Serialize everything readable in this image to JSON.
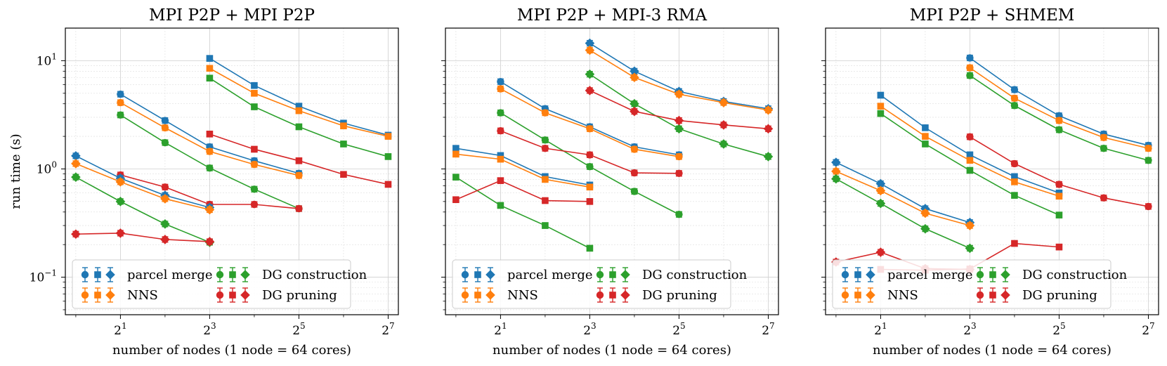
{
  "chart_data": {
    "type": "line",
    "x_scale": "log2",
    "y_scale": "log10",
    "xlim": [
      0.85,
      150
    ],
    "ylim": [
      0.045,
      20
    ],
    "x_ticks": [
      2,
      8,
      32,
      128
    ],
    "x_tick_labels": [
      {
        "base": "2",
        "exp": "1"
      },
      {
        "base": "2",
        "exp": "3"
      },
      {
        "base": "2",
        "exp": "5"
      },
      {
        "base": "2",
        "exp": "7"
      }
    ],
    "y_ticks": [
      0.1,
      1,
      10
    ],
    "y_tick_labels": [
      {
        "base": "10",
        "exp": "−1"
      },
      {
        "base": "10",
        "exp": "0"
      },
      {
        "base": "10",
        "exp": "1"
      }
    ],
    "xlabel": "number of nodes (1 node = 64 cores)",
    "ylabel": "run time (s)",
    "legend": {
      "location": "lower-left",
      "entries": [
        {
          "label": "parcel merge",
          "color": "#1f77b4"
        },
        {
          "label": "NNS",
          "color": "#ff7f0e"
        },
        {
          "label": "DG construction",
          "color": "#2ca02c"
        },
        {
          "label": "DG pruning",
          "color": "#d62728"
        }
      ]
    },
    "panels": [
      {
        "title": "MPI P2P + MPI P2P",
        "series": [
          {
            "name": "parcel merge",
            "marker": "square",
            "x": [
              8,
              16,
              32,
              64,
              128
            ],
            "y": [
              10.5,
              5.9,
              3.8,
              2.65,
              2.05
            ]
          },
          {
            "name": "NNS",
            "marker": "square",
            "x": [
              8,
              16,
              32,
              64,
              128
            ],
            "y": [
              8.5,
              5.0,
              3.45,
              2.5,
              2.0
            ]
          },
          {
            "name": "DG construction",
            "marker": "square",
            "x": [
              8,
              16,
              32,
              64,
              128
            ],
            "y": [
              6.9,
              3.75,
              2.45,
              1.7,
              1.3
            ]
          },
          {
            "name": "DG pruning",
            "marker": "square",
            "x": [
              8,
              16,
              32,
              64,
              128
            ],
            "y": [
              2.1,
              1.52,
              1.19,
              0.89,
              0.72
            ]
          },
          {
            "name": "parcel merge",
            "marker": "circle",
            "x": [
              2,
              4,
              8,
              16,
              32
            ],
            "y": [
              4.9,
              2.8,
              1.6,
              1.19,
              0.91
            ]
          },
          {
            "name": "NNS",
            "marker": "circle",
            "x": [
              2,
              4,
              8,
              16,
              32
            ],
            "y": [
              4.1,
              2.4,
              1.45,
              1.1,
              0.87
            ]
          },
          {
            "name": "DG construction",
            "marker": "circle",
            "x": [
              2,
              4,
              8,
              16,
              32
            ],
            "y": [
              3.15,
              1.75,
              1.02,
              0.65,
              0.43
            ]
          },
          {
            "name": "DG pruning",
            "marker": "circle",
            "x": [
              2,
              4,
              8,
              16,
              32
            ],
            "y": [
              0.88,
              0.68,
              0.47,
              0.47,
              0.43
            ]
          },
          {
            "name": "parcel merge",
            "marker": "diamond",
            "x": [
              1,
              2,
              4,
              8
            ],
            "y": [
              1.32,
              0.82,
              0.57,
              0.44
            ]
          },
          {
            "name": "NNS",
            "marker": "diamond",
            "x": [
              1,
              2,
              4,
              8
            ],
            "y": [
              1.12,
              0.76,
              0.53,
              0.42
            ]
          },
          {
            "name": "DG construction",
            "marker": "diamond",
            "x": [
              1,
              2,
              4,
              8
            ],
            "y": [
              0.84,
              0.5,
              0.31,
              0.21
            ]
          },
          {
            "name": "DG pruning",
            "marker": "diamond",
            "x": [
              1,
              2,
              4,
              8
            ],
            "y": [
              0.25,
              0.255,
              0.223,
              0.213
            ]
          }
        ]
      },
      {
        "title": "MPI P2P + MPI-3 RMA",
        "series": [
          {
            "name": "parcel merge",
            "marker": "diamond",
            "x": [
              8,
              16,
              32,
              64,
              128
            ],
            "y": [
              14.5,
              8.0,
              5.2,
              4.2,
              3.6
            ]
          },
          {
            "name": "NNS",
            "marker": "diamond",
            "x": [
              8,
              16,
              32,
              64,
              128
            ],
            "y": [
              12.5,
              7.0,
              4.9,
              4.1,
              3.5
            ]
          },
          {
            "name": "DG construction",
            "marker": "diamond",
            "x": [
              8,
              16,
              32,
              64,
              128
            ],
            "y": [
              7.5,
              4.0,
              2.35,
              1.7,
              1.3
            ]
          },
          {
            "name": "DG pruning",
            "marker": "diamond",
            "x": [
              8,
              16,
              32,
              64,
              128
            ],
            "y": [
              5.3,
              3.4,
              2.8,
              2.55,
              2.35
            ]
          },
          {
            "name": "parcel merge",
            "marker": "circle",
            "x": [
              2,
              4,
              8,
              16,
              32
            ],
            "y": [
              6.4,
              3.6,
              2.45,
              1.6,
              1.35
            ]
          },
          {
            "name": "NNS",
            "marker": "circle",
            "x": [
              2,
              4,
              8,
              16,
              32
            ],
            "y": [
              5.5,
              3.3,
              2.35,
              1.52,
              1.3
            ]
          },
          {
            "name": "DG construction",
            "marker": "circle",
            "x": [
              2,
              4,
              8,
              16,
              32
            ],
            "y": [
              3.3,
              1.85,
              1.05,
              0.62,
              0.38
            ]
          },
          {
            "name": "DG pruning",
            "marker": "circle",
            "x": [
              2,
              4,
              8,
              16,
              32
            ],
            "y": [
              2.25,
              1.55,
              1.35,
              0.92,
              0.91
            ]
          },
          {
            "name": "parcel merge",
            "marker": "square",
            "x": [
              1,
              2,
              4,
              8
            ],
            "y": [
              1.55,
              1.33,
              0.85,
              0.71
            ]
          },
          {
            "name": "NNS",
            "marker": "square",
            "x": [
              1,
              2,
              4,
              8
            ],
            "y": [
              1.37,
              1.23,
              0.8,
              0.68
            ]
          },
          {
            "name": "DG construction",
            "marker": "square",
            "x": [
              1,
              2,
              4,
              8
            ],
            "y": [
              0.84,
              0.46,
              0.3,
              0.185
            ]
          },
          {
            "name": "DG pruning",
            "marker": "square",
            "x": [
              1,
              2,
              4,
              8
            ],
            "y": [
              0.52,
              0.78,
              0.51,
              0.5
            ]
          }
        ]
      },
      {
        "title": "MPI P2P + SHMEM",
        "series": [
          {
            "name": "parcel merge",
            "marker": "circle",
            "x": [
              8,
              16,
              32,
              64,
              128
            ],
            "y": [
              10.6,
              5.4,
              3.1,
              2.1,
              1.65
            ]
          },
          {
            "name": "NNS",
            "marker": "circle",
            "x": [
              8,
              16,
              32,
              64,
              128
            ],
            "y": [
              8.6,
              4.5,
              2.8,
              1.95,
              1.55
            ]
          },
          {
            "name": "DG construction",
            "marker": "circle",
            "x": [
              8,
              16,
              32,
              64,
              128
            ],
            "y": [
              7.3,
              3.85,
              2.3,
              1.55,
              1.2
            ]
          },
          {
            "name": "DG pruning",
            "marker": "circle",
            "x": [
              8,
              16,
              32,
              64,
              128
            ],
            "y": [
              1.98,
              1.12,
              0.72,
              0.54,
              0.45
            ]
          },
          {
            "name": "parcel merge",
            "marker": "square",
            "x": [
              2,
              4,
              8,
              16,
              32
            ],
            "y": [
              4.8,
              2.4,
              1.35,
              0.85,
              0.6
            ]
          },
          {
            "name": "NNS",
            "marker": "square",
            "x": [
              2,
              4,
              8,
              16,
              32
            ],
            "y": [
              3.8,
              2.0,
              1.2,
              0.76,
              0.56
            ]
          },
          {
            "name": "DG construction",
            "marker": "square",
            "x": [
              2,
              4,
              8,
              16,
              32
            ],
            "y": [
              3.25,
              1.7,
              0.97,
              0.57,
              0.375
            ]
          },
          {
            "name": "DG pruning",
            "marker": "square",
            "x": [
              2,
              4,
              8,
              16,
              32
            ],
            "y": [
              0.118,
              0.116,
              0.119,
              0.205,
              0.19
            ]
          },
          {
            "name": "parcel merge",
            "marker": "diamond",
            "x": [
              1,
              2,
              4,
              8
            ],
            "y": [
              1.15,
              0.73,
              0.43,
              0.32
            ]
          },
          {
            "name": "NNS",
            "marker": "diamond",
            "x": [
              1,
              2,
              4,
              8
            ],
            "y": [
              0.95,
              0.63,
              0.39,
              0.3
            ]
          },
          {
            "name": "DG construction",
            "marker": "diamond",
            "x": [
              1,
              2,
              4,
              8
            ],
            "y": [
              0.81,
              0.48,
              0.28,
              0.185
            ]
          },
          {
            "name": "DG pruning",
            "marker": "diamond",
            "x": [
              1,
              2,
              4,
              8
            ],
            "y": [
              0.138,
              0.17,
              0.12,
              0.118
            ]
          }
        ]
      }
    ]
  }
}
